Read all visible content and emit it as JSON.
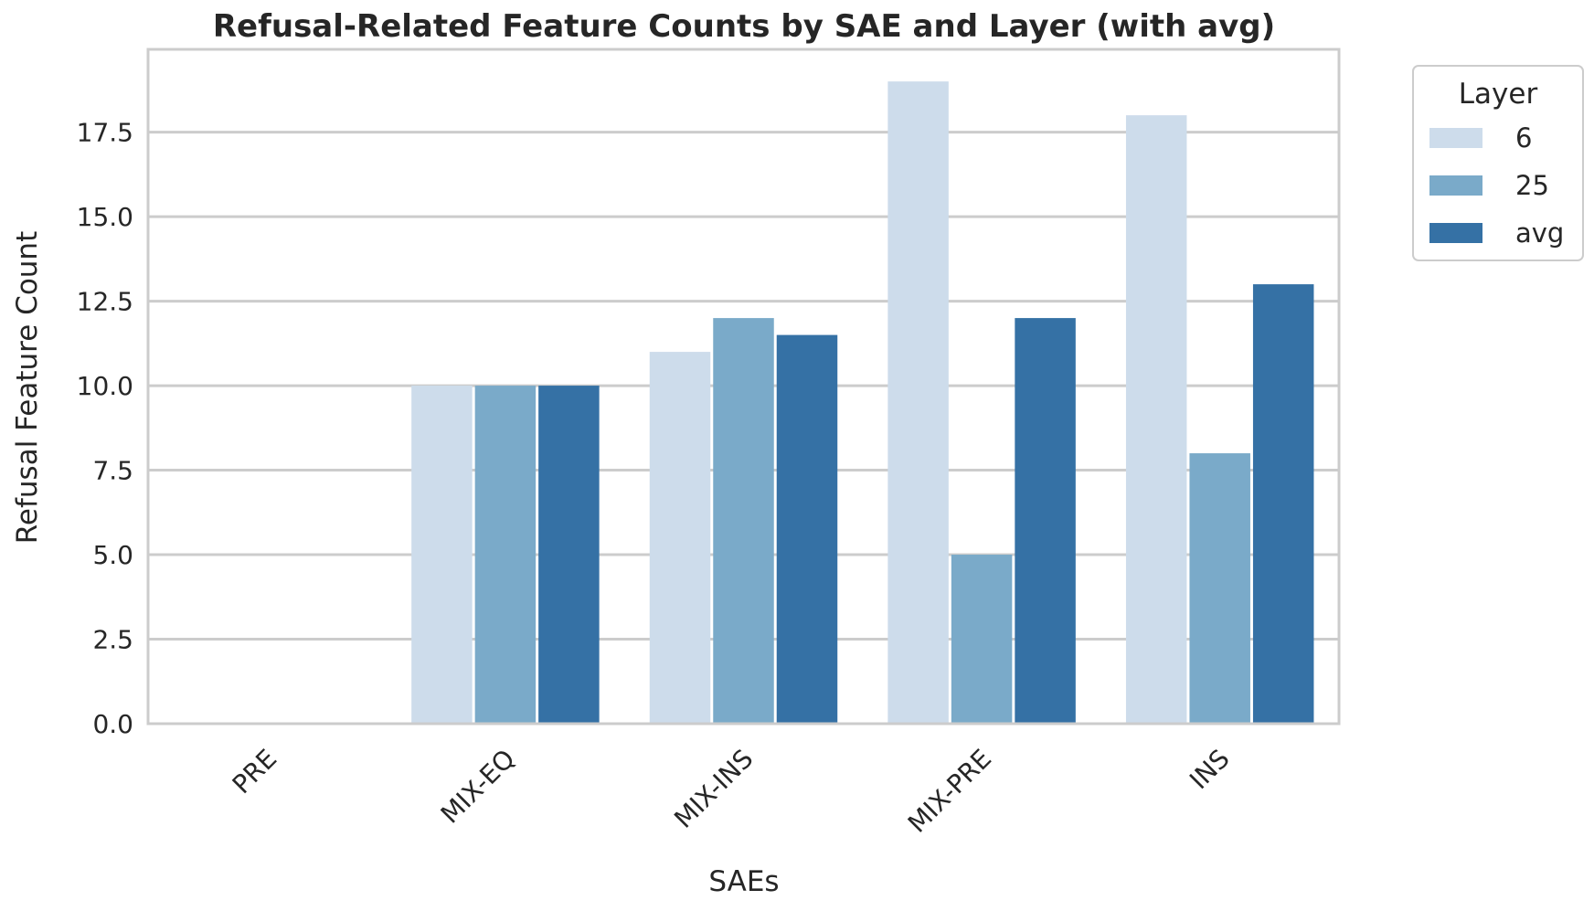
{
  "chart_data": {
    "type": "bar",
    "title": "Refusal-Related Feature Counts by SAE and Layer (with avg)",
    "xlabel": "SAEs",
    "ylabel": "Refusal Feature Count",
    "categories": [
      "PRE",
      "MIX-EQ",
      "MIX-INS",
      "MIX-PRE",
      "INS"
    ],
    "series": [
      {
        "name": "6",
        "values": [
          0,
          10,
          11,
          19,
          18
        ],
        "color": "#cddceb"
      },
      {
        "name": "25",
        "values": [
          0,
          10,
          12,
          5,
          8
        ],
        "color": "#7aaac9"
      },
      {
        "name": "avg",
        "values": [
          0,
          10,
          11.5,
          12,
          13
        ],
        "color": "#3571a5"
      }
    ],
    "ylim": [
      0,
      19.95
    ],
    "yticks": [
      "0.0",
      "2.5",
      "5.0",
      "7.5",
      "10.0",
      "12.5",
      "15.0",
      "17.5"
    ],
    "grid": true,
    "legend": {
      "title": "Layer",
      "position": "outside-top-right"
    }
  }
}
